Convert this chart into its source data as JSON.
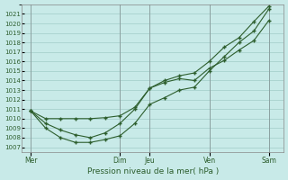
{
  "bg_color": "#c8eae8",
  "grid_color": "#a0ccc8",
  "line_color": "#2d5e2d",
  "xlabel": "Pression niveau de la mer( hPa )",
  "ylim": [
    1006.5,
    1022.0
  ],
  "yticks": [
    1007,
    1008,
    1009,
    1010,
    1011,
    1012,
    1013,
    1014,
    1015,
    1016,
    1017,
    1018,
    1019,
    1020,
    1021
  ],
  "day_labels": [
    "Mer",
    "Dim",
    "Jeu",
    "Ven",
    "Sam"
  ],
  "day_positions": [
    0.0,
    3.0,
    4.0,
    6.0,
    8.0
  ],
  "xlim": [
    -0.3,
    8.5
  ],
  "line1_x": [
    0.0,
    0.5,
    1.0,
    1.5,
    2.0,
    2.5,
    3.0,
    3.5,
    4.0,
    4.5,
    5.0,
    5.5,
    6.0,
    6.5,
    7.0,
    7.5,
    8.0
  ],
  "line1_y": [
    1010.8,
    1010.0,
    1010.0,
    1010.0,
    1010.0,
    1010.1,
    1010.3,
    1011.2,
    1013.2,
    1013.8,
    1014.2,
    1014.0,
    1015.3,
    1016.1,
    1017.2,
    1018.2,
    1020.3
  ],
  "line2_x": [
    0.0,
    0.5,
    1.0,
    1.5,
    2.0,
    2.5,
    3.0,
    3.5,
    4.0,
    4.5,
    5.0,
    5.5,
    6.0,
    6.5,
    7.0,
    7.5,
    8.0
  ],
  "line2_y": [
    1010.8,
    1009.0,
    1008.0,
    1007.5,
    1007.5,
    1007.8,
    1008.2,
    1009.5,
    1011.5,
    1012.2,
    1013.0,
    1013.3,
    1015.0,
    1016.5,
    1018.0,
    1019.2,
    1021.5
  ],
  "line3_x": [
    0.0,
    0.5,
    1.0,
    1.5,
    2.0,
    2.5,
    3.0,
    3.5,
    4.0,
    4.5,
    5.0,
    5.5,
    6.0,
    6.5,
    7.0,
    7.5,
    8.0
  ],
  "line3_y": [
    1010.8,
    1009.5,
    1008.8,
    1008.3,
    1008.0,
    1008.5,
    1009.5,
    1011.0,
    1013.2,
    1014.0,
    1014.5,
    1014.8,
    1016.0,
    1017.5,
    1018.5,
    1020.2,
    1021.8
  ]
}
